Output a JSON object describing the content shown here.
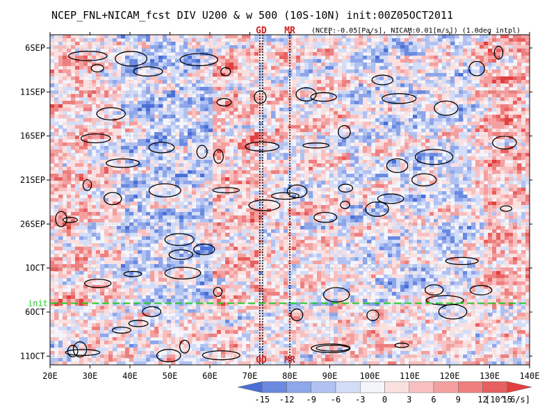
{
  "chart_data": {
    "type": "heatmap",
    "title": "NCEP_FNL+NICAM_fcst DIV U200 & w 500 (10S-10N) init:00Z05OCT2011",
    "subtitle": "(NCEP:-0.05[Pa/s], NICAM:0.01[m/s]) (1.0deg intpl)",
    "x_ticks": [
      "20E",
      "30E",
      "40E",
      "50E",
      "60E",
      "70E",
      "80E",
      "90E",
      "100E",
      "110E",
      "120E",
      "130E",
      "140E"
    ],
    "x_values": [
      20,
      30,
      40,
      50,
      60,
      70,
      80,
      90,
      100,
      110,
      120,
      130,
      140
    ],
    "xlim": [
      20,
      140
    ],
    "y_ticks": [
      "6SEP",
      "11SEP",
      "16SEP",
      "21SEP",
      "26SEP",
      "1OCT",
      "6OCT",
      "11OCT"
    ],
    "y_values": [
      6,
      11,
      16,
      21,
      26,
      31,
      36,
      41
    ],
    "ylim": [
      4.5,
      42
    ],
    "ylim_units": "days since 1 SEP 2011",
    "init_line": {
      "label": "init",
      "y": 35,
      "color": "#22cc22"
    },
    "markers": [
      {
        "label": "GD",
        "x": [
          72.5,
          73.2
        ]
      },
      {
        "label": "MR",
        "x": [
          80
        ]
      }
    ],
    "colorbar": {
      "levels": [
        -15,
        -12,
        -9,
        -6,
        -3,
        0,
        3,
        6,
        9,
        12,
        15
      ],
      "labels": [
        "-15",
        "-12",
        "-9",
        "-6",
        "-3",
        "0",
        "3",
        "6",
        "9",
        "12",
        "15"
      ],
      "colors": [
        "#4a6fd6",
        "#6a8ae0",
        "#8ea6ea",
        "#b1c2f2",
        "#d3ddf8",
        "#f4f4fb",
        "#fbe0e0",
        "#f8c0c0",
        "#f4a0a0",
        "#ee7f7f",
        "#e85f5f",
        "#e23f3f"
      ],
      "units": "[10^-6/s]"
    }
  }
}
